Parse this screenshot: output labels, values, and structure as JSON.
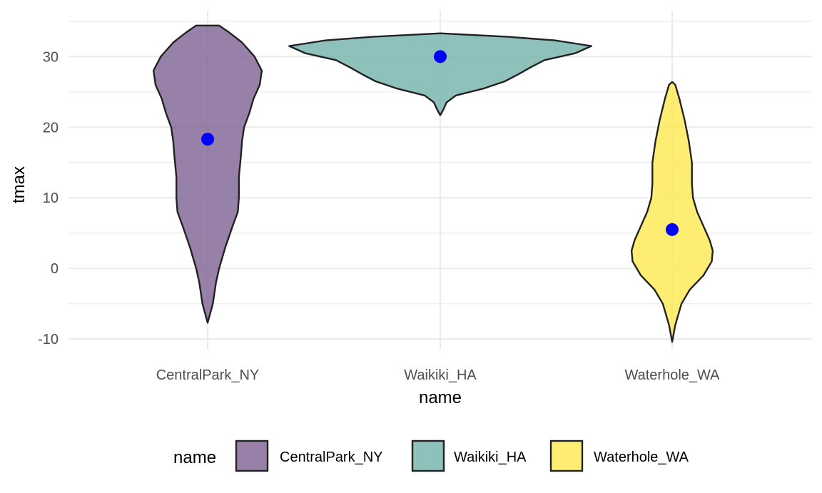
{
  "chart_data": {
    "type": "violin",
    "xlabel": "name",
    "ylabel": "tmax",
    "categories": [
      "CentralPark_NY",
      "Waikiki_HA",
      "Waterhole_WA"
    ],
    "ylim": [
      -11.5,
      36.5
    ],
    "yticks": [
      -10,
      0,
      10,
      20,
      30
    ],
    "yticks_labels": [
      "-10",
      "0",
      "10",
      "20",
      "30"
    ],
    "grid": true,
    "legend": {
      "title": "name",
      "position": "bottom",
      "labels": [
        "CentralPark_NY",
        "Waikiki_HA",
        "Waterhole_WA"
      ]
    },
    "colors": {
      "CentralPark_NY": "#7b5e8f",
      "Waikiki_HA": "#6eb0a9",
      "Waterhole_WA": "#fde84a",
      "outline": "#222222",
      "point": "#0000ff",
      "grid": "#ebebeb"
    },
    "series": [
      {
        "name": "CentralPark_NY",
        "min": -7.7,
        "max": 34.4,
        "median": 18.3,
        "density_profile": [
          [
            -7.7,
            0.0
          ],
          [
            -5,
            0.05
          ],
          [
            -2,
            0.08
          ],
          [
            0,
            0.11
          ],
          [
            3,
            0.17
          ],
          [
            6,
            0.24
          ],
          [
            8,
            0.29
          ],
          [
            10,
            0.3
          ],
          [
            13,
            0.3
          ],
          [
            16,
            0.32
          ],
          [
            18,
            0.33
          ],
          [
            20,
            0.35
          ],
          [
            22,
            0.4
          ],
          [
            24,
            0.44
          ],
          [
            26,
            0.5
          ],
          [
            28,
            0.52
          ],
          [
            30,
            0.45
          ],
          [
            32,
            0.33
          ],
          [
            33.5,
            0.2
          ],
          [
            34.4,
            0.11
          ]
        ]
      },
      {
        "name": "Waikiki_HA",
        "min": 21.7,
        "max": 33.3,
        "median": 30.0,
        "density_profile": [
          [
            21.7,
            0.0
          ],
          [
            22.5,
            0.03
          ],
          [
            23.5,
            0.06
          ],
          [
            24.5,
            0.15
          ],
          [
            25.5,
            0.42
          ],
          [
            26.5,
            0.62
          ],
          [
            27.5,
            0.75
          ],
          [
            28.5,
            0.87
          ],
          [
            29.5,
            1.0
          ],
          [
            30.5,
            1.3
          ],
          [
            31.5,
            1.45
          ],
          [
            32.3,
            1.1
          ],
          [
            32.8,
            0.65
          ],
          [
            33.3,
            0.0
          ]
        ]
      },
      {
        "name": "Waterhole_WA",
        "min": -10.4,
        "max": 26.4,
        "median": 5.5,
        "density_profile": [
          [
            -10.4,
            0.0
          ],
          [
            -8,
            0.03
          ],
          [
            -5,
            0.09
          ],
          [
            -3,
            0.17
          ],
          [
            -1,
            0.3
          ],
          [
            1,
            0.38
          ],
          [
            2.5,
            0.39
          ],
          [
            4,
            0.36
          ],
          [
            6,
            0.3
          ],
          [
            8,
            0.24
          ],
          [
            10,
            0.2
          ],
          [
            12,
            0.19
          ],
          [
            15,
            0.19
          ],
          [
            18,
            0.16
          ],
          [
            21,
            0.12
          ],
          [
            24,
            0.07
          ],
          [
            26,
            0.03
          ],
          [
            26.4,
            0.0
          ]
        ]
      }
    ]
  }
}
